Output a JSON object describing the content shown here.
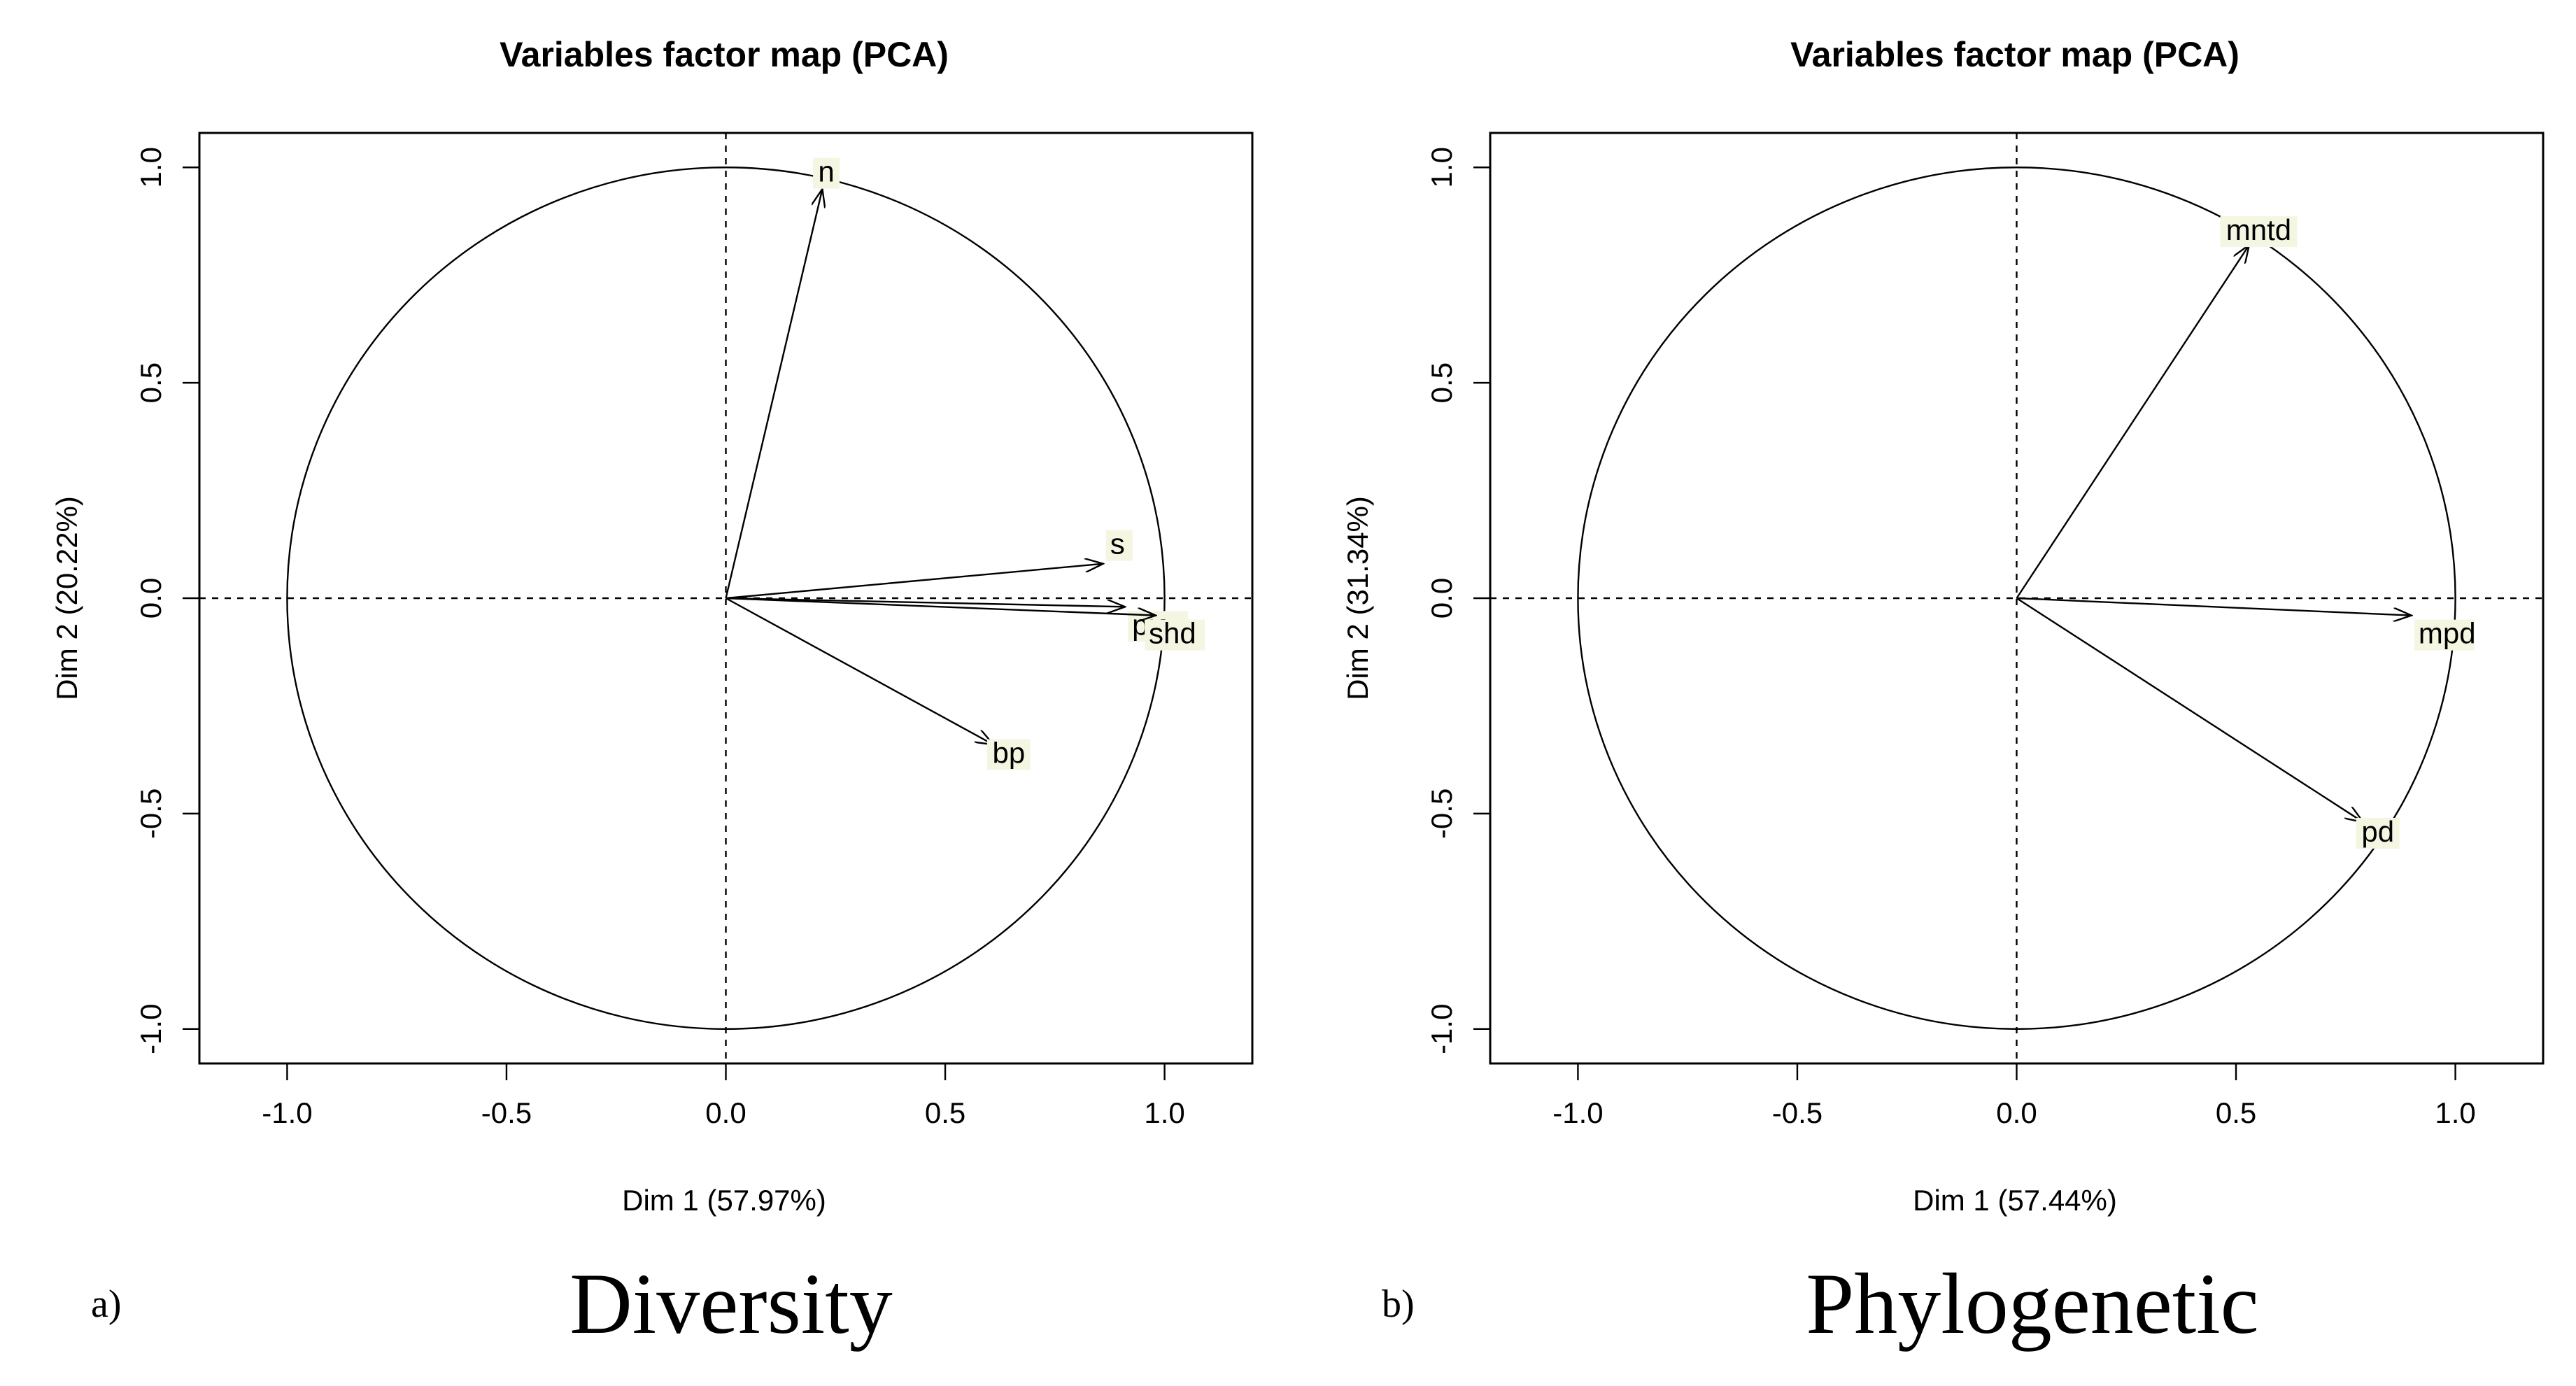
{
  "chart_data": [
    {
      "type": "scatter",
      "title": "Variables factor map (PCA)",
      "xlabel": "Dim 1 (57.97%)",
      "ylabel": "Dim 2 (20.22%)",
      "xlim": [
        -1.2,
        1.2
      ],
      "ylim": [
        -1.08,
        1.08
      ],
      "x_ticks": [
        "-1.0",
        "-0.5",
        "0.0",
        "0.5",
        "1.0"
      ],
      "y_ticks": [
        "-1.0",
        "-0.5",
        "0.0",
        "0.5",
        "1.0"
      ],
      "grid": false,
      "reference_lines": "dashed lines at x = 0 and y = 0",
      "unit_circle": true,
      "variables": [
        {
          "name": "n",
          "x": 0.22,
          "y": 0.95
        },
        {
          "name": "s",
          "x": 0.86,
          "y": 0.08
        },
        {
          "name": "pie",
          "x": 0.91,
          "y": -0.02
        },
        {
          "name": "shd",
          "x": 0.98,
          "y": -0.04
        },
        {
          "name": "bp",
          "x": 0.61,
          "y": -0.34
        }
      ],
      "panel_letter": "a)",
      "caption": "Diversity"
    },
    {
      "type": "scatter",
      "title": "Variables factor map (PCA)",
      "xlabel": "Dim 1 (57.44%)",
      "ylabel": "Dim 2 (31.34%)",
      "xlim": [
        -1.2,
        1.2
      ],
      "ylim": [
        -1.08,
        1.08
      ],
      "x_ticks": [
        "-1.0",
        "-0.5",
        "0.0",
        "0.5",
        "1.0"
      ],
      "y_ticks": [
        "-1.0",
        "-0.5",
        "0.0",
        "0.5",
        "1.0"
      ],
      "grid": false,
      "reference_lines": "dashed lines at x = 0 and y = 0",
      "unit_circle": true,
      "variables": [
        {
          "name": "mntd",
          "x": 0.53,
          "y": 0.82
        },
        {
          "name": "mpd",
          "x": 0.9,
          "y": -0.04
        },
        {
          "name": "pd",
          "x": 0.79,
          "y": -0.52
        }
      ],
      "panel_letter": "b)",
      "caption": "Phylogenetic"
    }
  ],
  "style": {
    "ink_color": "#000000",
    "background_color": "#ffffff",
    "label_highlight_color": "#f4f6e2"
  }
}
